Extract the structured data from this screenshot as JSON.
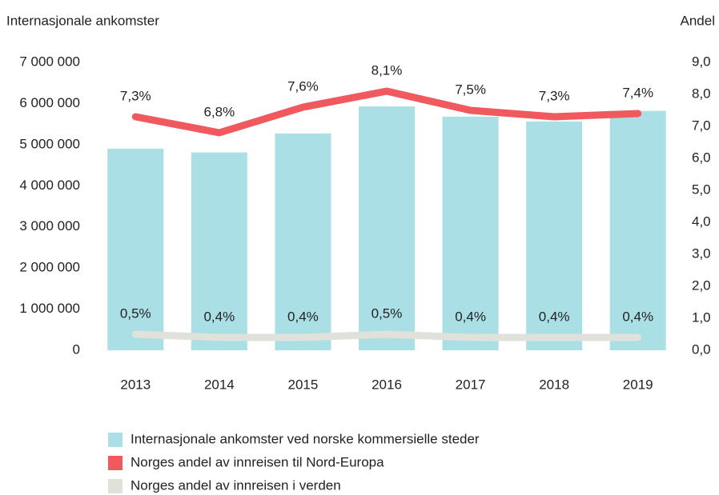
{
  "chart_data": {
    "type": "bar",
    "y_axis_label": "Internasjonale ankomster",
    "y2_axis_label": "Andel",
    "categories": [
      "2013",
      "2014",
      "2015",
      "2016",
      "2017",
      "2018",
      "2019"
    ],
    "series": [
      {
        "name": "Internasjonale ankomster ved norske kommersielle steder",
        "type": "bar",
        "color": "#aadfe6",
        "values": [
          4900000,
          4810000,
          5270000,
          5930000,
          5680000,
          5560000,
          5820000
        ]
      },
      {
        "name": "Norges andel av innreisen til Nord-Europa",
        "type": "line",
        "axis": "y2",
        "color": "#f05a5f",
        "values": [
          7.3,
          6.8,
          7.6,
          8.1,
          7.5,
          7.3,
          7.4
        ],
        "value_labels": [
          "7,3%",
          "6,8%",
          "7,6%",
          "8,1%",
          "7,5%",
          "7,3%",
          "7,4%"
        ]
      },
      {
        "name": "Norges andel av innreisen i verden",
        "type": "line",
        "axis": "y2",
        "color": "#e1e1db",
        "values": [
          0.5,
          0.4,
          0.4,
          0.5,
          0.4,
          0.4,
          0.4
        ],
        "value_labels": [
          "0,5%",
          "0,4%",
          "0,4%",
          "0,5%",
          "0,4%",
          "0,4%",
          "0,4%"
        ]
      }
    ],
    "ylim": [
      0,
      7000000
    ],
    "yticks": [
      0,
      {
        "value": 1000000,
        "label": "1 000 000"
      },
      {
        "value": 2000000,
        "label": "2 000 000"
      },
      {
        "value": 3000000,
        "label": "3 000 000"
      },
      {
        "value": 4000000,
        "label": "4 000 000"
      },
      {
        "value": 5000000,
        "label": "5 000 000"
      },
      {
        "value": 6000000,
        "label": "6 000 000"
      },
      {
        "value": 7000000,
        "label": "7 000 000"
      }
    ],
    "y2lim": [
      0,
      9
    ],
    "y2ticks": [
      {
        "value": 0,
        "label": "0,0"
      },
      {
        "value": 1,
        "label": "1,0"
      },
      {
        "value": 2,
        "label": "2,0"
      },
      {
        "value": 3,
        "label": "3,0"
      },
      {
        "value": 4,
        "label": "4,0"
      },
      {
        "value": 5,
        "label": "5,0"
      },
      {
        "value": 6,
        "label": "6,0"
      },
      {
        "value": 7,
        "label": "7,0"
      },
      {
        "value": 8,
        "label": "8,0"
      },
      {
        "value": 9,
        "label": "9,0"
      }
    ],
    "grid": false
  }
}
